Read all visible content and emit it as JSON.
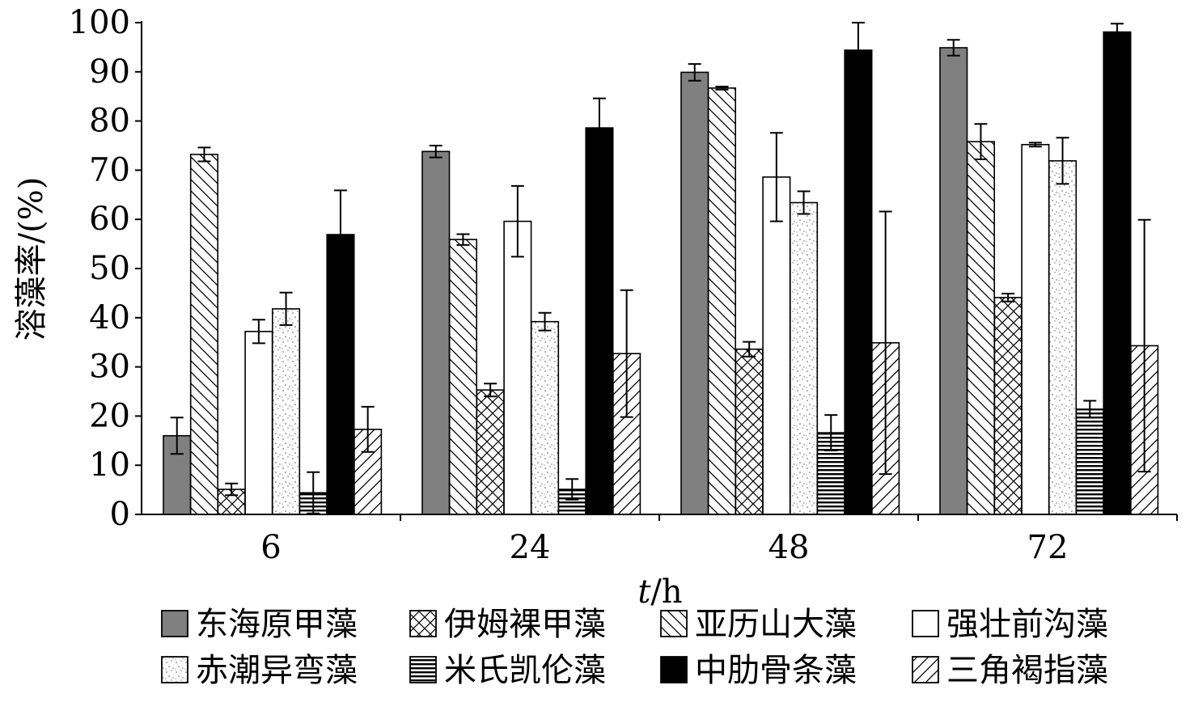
{
  "chart_data": {
    "type": "bar",
    "title": "",
    "xlabel_italic": "t",
    "xlabel_rest": "/h",
    "ylabel": "溶藻率/(%)",
    "ylim": [
      0,
      100
    ],
    "yticks": [
      0,
      10,
      20,
      30,
      40,
      50,
      60,
      70,
      80,
      90,
      100
    ],
    "categories": [
      "6",
      "24",
      "48",
      "72"
    ],
    "legend_position": "bottom",
    "series": [
      {
        "name": "东海原甲藻",
        "pattern": "gray",
        "values": [
          16,
          73.8,
          89.9,
          94.9
        ],
        "errors": [
          3.7,
          1.2,
          1.7,
          1.6
        ]
      },
      {
        "name": "亚历山大藻",
        "pattern": "bdiag",
        "values": [
          73.2,
          55.9,
          86.7,
          75.8
        ],
        "errors": [
          1.4,
          1.1,
          0.3,
          3.6
        ]
      },
      {
        "name": "伊姆裸甲藻",
        "pattern": "cross",
        "values": [
          5.1,
          25.3,
          33.6,
          44.1
        ],
        "errors": [
          1.2,
          1.3,
          1.5,
          0.8
        ]
      },
      {
        "name": "强壮前沟藻",
        "pattern": "white",
        "values": [
          37.2,
          59.6,
          68.6,
          75.2
        ],
        "errors": [
          2.4,
          7.2,
          9,
          0.4
        ]
      },
      {
        "name": "赤潮异弯藻",
        "pattern": "dots",
        "values": [
          41.8,
          39.2,
          63.4,
          71.9
        ],
        "errors": [
          3.3,
          1.8,
          2.3,
          4.7
        ]
      },
      {
        "name": "米氏凯伦藻",
        "pattern": "hlines",
        "values": [
          4.4,
          5.1,
          16.6,
          21.4
        ],
        "errors": [
          4.2,
          2.1,
          3.6,
          1.7
        ]
      },
      {
        "name": "中肋骨条藻",
        "pattern": "black",
        "values": [
          56.9,
          78.6,
          94.4,
          98.1
        ],
        "errors": [
          9,
          6,
          5.7,
          1.7
        ]
      },
      {
        "name": "三角褐指藻",
        "pattern": "fdiag",
        "values": [
          17.3,
          32.7,
          34.9,
          34.3
        ],
        "errors": [
          4.6,
          12.9,
          26.7,
          25.6
        ]
      }
    ],
    "legend_order": [
      [
        "东海原甲藻",
        "伊姆裸甲藻",
        "亚历山大藻",
        "强壮前沟藻"
      ],
      [
        "赤潮异弯藻",
        "米氏凯伦藻",
        "中肋骨条藻",
        "三角褐指藻"
      ]
    ]
  }
}
